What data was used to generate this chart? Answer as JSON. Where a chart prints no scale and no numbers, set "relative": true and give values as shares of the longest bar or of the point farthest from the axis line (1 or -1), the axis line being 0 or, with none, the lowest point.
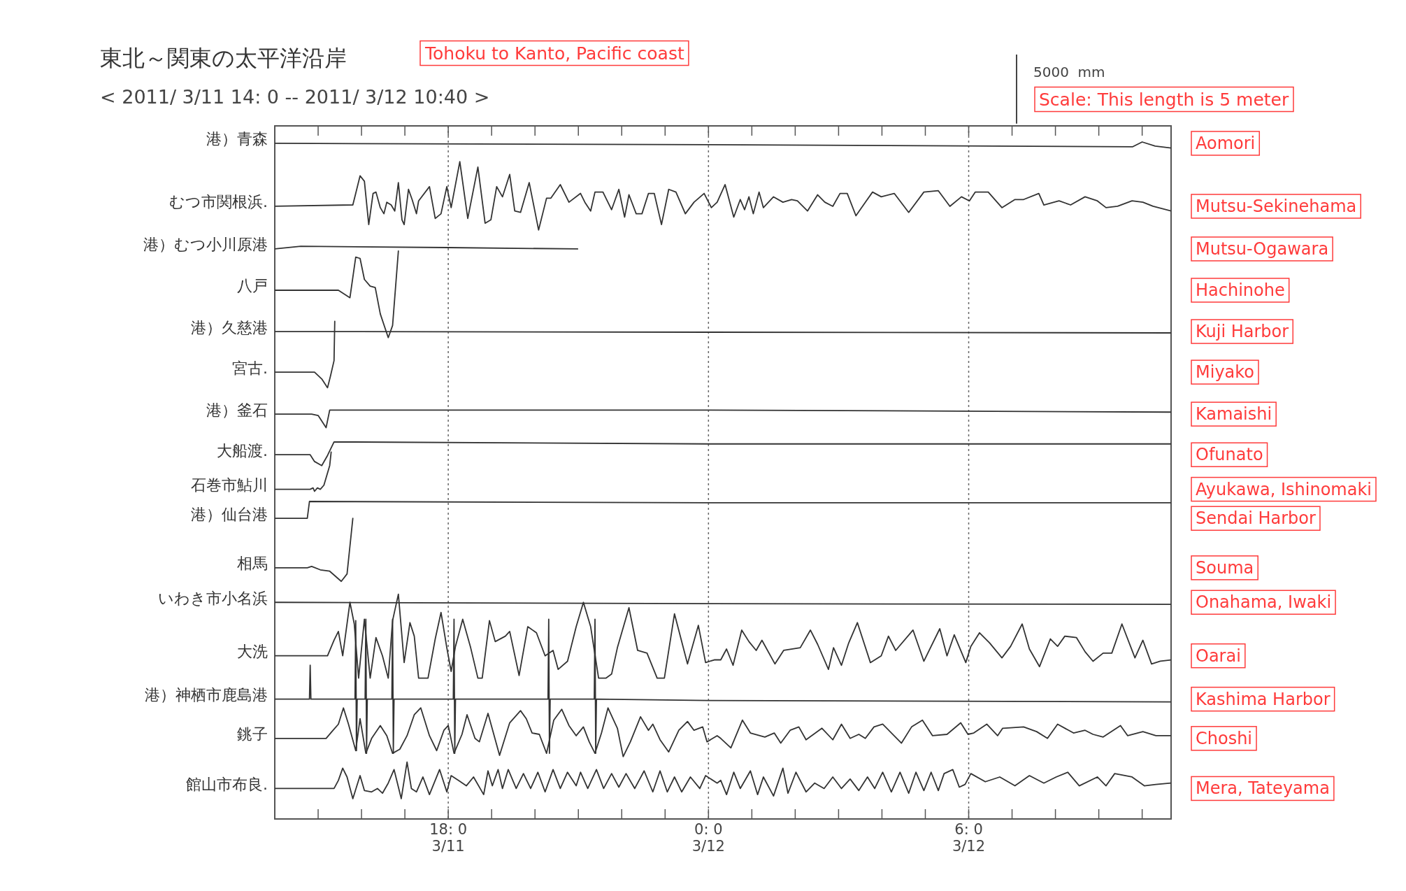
{
  "chart_data": {
    "type": "line",
    "title": "東北～関東の太平洋沿岸",
    "subtitle": "< 2011/ 3/11 14: 0 -- 2011/ 3/12 10:40 >",
    "relative": true,
    "tick_labels": "x",
    "xlim": [
      "2011-03-11T14:00",
      "2011-03-12T10:40"
    ],
    "xticks": [
      {
        "value": "2011-03-11T15:00",
        "label": null
      },
      {
        "value": "2011-03-11T16:00",
        "label": null
      },
      {
        "value": "2011-03-11T17:00",
        "label": null
      },
      {
        "value": "2011-03-11T18:00",
        "label": "18: 0\n3/11"
      },
      {
        "value": "2011-03-11T19:00",
        "label": null
      },
      {
        "value": "2011-03-11T20:00",
        "label": null
      },
      {
        "value": "2011-03-11T21:00",
        "label": null
      },
      {
        "value": "2011-03-11T22:00",
        "label": null
      },
      {
        "value": "2011-03-11T23:00",
        "label": null
      },
      {
        "value": "2011-03-12T00:00",
        "label": "0: 0\n3/12"
      },
      {
        "value": "2011-03-12T01:00",
        "label": null
      },
      {
        "value": "2011-03-12T02:00",
        "label": null
      },
      {
        "value": "2011-03-12T03:00",
        "label": null
      },
      {
        "value": "2011-03-12T04:00",
        "label": null
      },
      {
        "value": "2011-03-12T05:00",
        "label": null
      },
      {
        "value": "2011-03-12T06:00",
        "label": "6: 0\n3/12"
      },
      {
        "value": "2011-03-12T07:00",
        "label": null
      },
      {
        "value": "2011-03-12T08:00",
        "label": null
      },
      {
        "value": "2011-03-12T09:00",
        "label": null
      },
      {
        "value": "2011-03-12T10:00",
        "label": null
      }
    ],
    "ref_lines": [
      {
        "axis": "x",
        "value": "2011-03-11T18:00",
        "line_style": "dotted"
      },
      {
        "axis": "x",
        "value": "2011-03-12T00:00",
        "line_style": "dotted"
      },
      {
        "axis": "x",
        "value": "2011-03-12T06:00",
        "line_style": "dotted"
      }
    ],
    "annotations": [
      "Tohoku to Kanto, Pacific coast",
      "5000  mm",
      "Scale: This length is 5 meter",
      "Aomori",
      "Mutsu-Sekinehama",
      "Mutsu-Ogawara",
      "Hachinohe",
      "Kuji Harbor",
      "Miyako",
      "Kamaishi",
      "Ofunato",
      "Ayukawa, Ishinomaki",
      "Sendai Harbor",
      "Souma",
      "Onahama, Iwaki",
      "Oarai",
      "Kashima Harbor",
      "Choshi",
      "Mera, Tateyama"
    ],
    "series": [
      {
        "name": "港）青森",
        "color": "#333333",
        "x": [
          "2011-03-11T14:00",
          "2011-03-12T00:00",
          "2011-03-12T09:47",
          "2011-03-12T10:00",
          "2011-03-12T10:18",
          "2011-03-12T10:40"
        ],
        "values": [
          0.998,
          0.996,
          0.993,
          1,
          0.994,
          0.991
        ]
      },
      {
        "name": "むつ市関根浜.",
        "color": "#333333",
        "x": [
          "2011-03-11T14:00",
          "2011-03-11T15:48",
          "2011-03-11T15:52",
          "2011-03-11T15:58",
          "2011-03-11T16:04",
          "2011-03-11T16:10",
          "2011-03-11T16:16",
          "2011-03-11T16:20",
          "2011-03-11T16:26",
          "2011-03-11T16:31",
          "2011-03-11T16:35",
          "2011-03-11T16:41",
          "2011-03-11T16:46",
          "2011-03-11T16:51",
          "2011-03-11T16:56",
          "2011-03-11T16:59",
          "2011-03-11T17:05",
          "2011-03-11T17:10",
          "2011-03-11T17:16",
          "2011-03-11T17:19",
          "2011-03-11T17:34",
          "2011-03-11T17:42",
          "2011-03-11T17:50",
          "2011-03-11T17:58",
          "2011-03-11T18:04",
          "2011-03-11T18:16",
          "2011-03-11T18:27",
          "2011-03-11T18:41",
          "2011-03-11T18:51",
          "2011-03-11T18:59",
          "2011-03-11T19:07",
          "2011-03-11T19:15",
          "2011-03-11T19:25",
          "2011-03-11T19:32",
          "2011-03-11T19:40",
          "2011-03-11T19:52",
          "2011-03-11T20:05",
          "2011-03-11T20:16",
          "2011-03-11T20:22",
          "2011-03-11T20:35",
          "2011-03-11T20:47",
          "2011-03-11T21:03",
          "2011-03-11T21:09",
          "2011-03-11T21:17",
          "2011-03-11T21:23",
          "2011-03-11T21:34",
          "2011-03-11T21:46",
          "2011-03-11T21:56",
          "2011-03-11T22:04",
          "2011-03-11T22:10",
          "2011-03-11T22:20",
          "2011-03-11T22:28",
          "2011-03-11T22:37",
          "2011-03-11T22:45",
          "2011-03-11T22:55",
          "2011-03-11T23:05",
          "2011-03-11T23:15",
          "2011-03-11T23:28",
          "2011-03-11T23:40",
          "2011-03-11T23:54",
          "2011-03-12T00:04",
          "2011-03-12T00:12",
          "2011-03-12T00:23",
          "2011-03-12T00:35",
          "2011-03-12T00:44",
          "2011-03-12T00:50",
          "2011-03-12T00:56",
          "2011-03-12T01:02",
          "2011-03-12T01:10",
          "2011-03-12T01:16",
          "2011-03-12T01:30",
          "2011-03-12T01:43",
          "2011-03-12T01:55",
          "2011-03-12T02:03",
          "2011-03-12T02:17",
          "2011-03-12T02:31",
          "2011-03-12T02:41",
          "2011-03-12T02:52",
          "2011-03-12T03:02",
          "2011-03-12T03:12",
          "2011-03-12T03:24",
          "2011-03-12T03:37",
          "2011-03-12T03:47",
          "2011-03-12T03:59",
          "2011-03-12T04:17",
          "2011-03-12T04:37",
          "2011-03-12T04:58",
          "2011-03-12T05:18",
          "2011-03-12T05:34",
          "2011-03-12T05:50",
          "2011-03-12T06:01",
          "2011-03-12T06:09",
          "2011-03-12T06:27",
          "2011-03-12T06:46",
          "2011-03-12T07:04",
          "2011-03-12T07:16",
          "2011-03-12T07:37",
          "2011-03-12T07:44",
          "2011-03-12T08:05",
          "2011-03-12T08:21",
          "2011-03-12T08:41",
          "2011-03-12T08:58",
          "2011-03-12T09:10",
          "2011-03-12T09:26",
          "2011-03-12T09:46",
          "2011-03-12T10:01",
          "2011-03-12T10:15",
          "2011-03-12T10:40"
        ],
        "values": [
          0.905,
          0.907,
          0.924,
          0.95,
          0.942,
          0.878,
          0.924,
          0.926,
          0.903,
          0.894,
          0.911,
          0.907,
          0.898,
          0.94,
          0.885,
          0.878,
          0.93,
          0.915,
          0.894,
          0.913,
          0.934,
          0.887,
          0.894,
          0.934,
          0.903,
          0.971,
          0.887,
          0.963,
          0.88,
          0.885,
          0.934,
          0.919,
          0.952,
          0.898,
          0.896,
          0.94,
          0.87,
          0.917,
          0.917,
          0.937,
          0.911,
          0.924,
          0.911,
          0.898,
          0.926,
          0.926,
          0.9,
          0.93,
          0.889,
          0.922,
          0.894,
          0.894,
          0.924,
          0.924,
          0.878,
          0.93,
          0.926,
          0.894,
          0.911,
          0.924,
          0.903,
          0.911,
          0.937,
          0.889,
          0.915,
          0.9,
          0.919,
          0.894,
          0.926,
          0.903,
          0.919,
          0.911,
          0.915,
          0.913,
          0.898,
          0.922,
          0.911,
          0.905,
          0.924,
          0.924,
          0.891,
          0.911,
          0.926,
          0.919,
          0.924,
          0.896,
          0.926,
          0.928,
          0.905,
          0.919,
          0.913,
          0.926,
          0.926,
          0.903,
          0.915,
          0.915,
          0.924,
          0.907,
          0.913,
          0.907,
          0.919,
          0.913,
          0.903,
          0.905,
          0.913,
          0.911,
          0.905,
          0.898
        ]
      },
      {
        "name": "港）むつ小川原港",
        "color": "#333333",
        "x": [
          "2011-03-11T14:00",
          "2011-03-11T14:36",
          "2011-03-11T18:00",
          "2011-03-11T20:59"
        ],
        "values": [
          0.842,
          0.846,
          0.844,
          0.842
        ]
      },
      {
        "name": "八戸",
        "color": "#333333",
        "x": [
          "2011-03-11T14:00",
          "2011-03-11T15:28",
          "2011-03-11T15:44",
          "2011-03-11T15:52",
          "2011-03-11T15:58",
          "2011-03-11T16:04",
          "2011-03-11T16:12",
          "2011-03-11T16:19",
          "2011-03-11T16:26",
          "2011-03-11T16:37",
          "2011-03-11T16:43",
          "2011-03-11T16:51"
        ],
        "values": [
          0.781,
          0.781,
          0.77,
          0.83,
          0.828,
          0.797,
          0.787,
          0.785,
          0.746,
          0.711,
          0.729,
          0.839
        ]
      },
      {
        "name": "港）久慈港",
        "color": "#333333",
        "x": [
          "2011-03-11T14:00",
          "2011-03-11T15:18",
          "2011-03-12T00:00",
          "2011-03-12T10:40"
        ],
        "values": [
          0.72,
          0.72,
          0.719,
          0.718
        ]
      },
      {
        "name": "宮古.",
        "color": "#333333",
        "x": [
          "2011-03-11T14:00",
          "2011-03-11T14:55",
          "2011-03-11T15:05",
          "2011-03-11T15:13",
          "2011-03-11T15:17",
          "2011-03-11T15:22",
          "2011-03-11T15:23"
        ],
        "values": [
          0.66,
          0.66,
          0.65,
          0.637,
          0.654,
          0.677,
          0.735
        ]
      },
      {
        "name": "港）釜石",
        "color": "#333333",
        "x": [
          "2011-03-11T14:00",
          "2011-03-11T14:51",
          "2011-03-11T15:00",
          "2011-03-11T15:11",
          "2011-03-11T15:16",
          "2011-03-12T00:00",
          "2011-03-12T10:40"
        ],
        "values": [
          0.598,
          0.598,
          0.596,
          0.578,
          0.604,
          0.604,
          0.601
        ]
      },
      {
        "name": "大船渡.",
        "color": "#333333",
        "x": [
          "2011-03-11T14:00",
          "2011-03-11T14:49",
          "2011-03-11T14:55",
          "2011-03-11T15:05",
          "2011-03-11T15:13",
          "2011-03-11T15:22",
          "2011-03-12T00:00",
          "2011-03-12T10:40"
        ],
        "values": [
          0.538,
          0.538,
          0.528,
          0.522,
          0.537,
          0.557,
          0.554,
          0.554
        ]
      },
      {
        "name": "石巻市鮎川",
        "color": "#333333",
        "x": [
          "2011-03-11T14:00",
          "2011-03-11T14:49",
          "2011-03-11T14:53",
          "2011-03-11T14:55",
          "2011-03-11T14:59",
          "2011-03-11T15:03",
          "2011-03-11T15:08",
          "2011-03-11T15:16",
          "2011-03-11T15:18"
        ],
        "values": [
          0.487,
          0.487,
          0.489,
          0.484,
          0.489,
          0.487,
          0.493,
          0.522,
          0.542
        ]
      },
      {
        "name": "港）仙台港",
        "color": "#333333",
        "x": [
          "2011-03-11T14:00",
          "2011-03-11T14:45",
          "2011-03-11T14:48",
          "2011-03-12T00:00",
          "2011-03-12T10:40"
        ],
        "values": [
          0.444,
          0.444,
          0.469,
          0.467,
          0.467
        ]
      },
      {
        "name": "相馬",
        "color": "#333333",
        "x": [
          "2011-03-11T14:00",
          "2011-03-11T14:45",
          "2011-03-11T14:51",
          "2011-03-11T15:03",
          "2011-03-11T15:16",
          "2011-03-11T15:32",
          "2011-03-11T15:40",
          "2011-03-11T15:48"
        ],
        "values": [
          0.371,
          0.371,
          0.373,
          0.368,
          0.366,
          0.351,
          0.362,
          0.444
        ]
      },
      {
        "name": "いわき市小名浜",
        "color": "#333333",
        "x": [
          "2011-03-11T14:00",
          "2011-03-12T00:00",
          "2011-03-12T10:40"
        ],
        "values": [
          0.32,
          0.318,
          0.317
        ]
      },
      {
        "name": "大洗",
        "color": "#333333",
        "x": [
          "2011-03-11T14:00",
          "2011-03-11T15:13",
          "2011-03-11T15:22",
          "2011-03-11T15:28",
          "2011-03-11T15:34",
          "2011-03-11T15:44",
          "2011-03-11T15:50",
          "2011-03-11T15:56",
          "2011-03-11T16:04",
          "2011-03-11T16:12",
          "2011-03-11T16:20",
          "2011-03-11T16:29",
          "2011-03-11T16:37",
          "2011-03-11T16:43",
          "2011-03-11T16:51",
          "2011-03-11T16:59",
          "2011-03-11T17:07",
          "2011-03-11T17:13",
          "2011-03-11T17:19",
          "2011-03-11T17:32",
          "2011-03-11T17:42",
          "2011-03-11T17:50",
          "2011-03-11T17:58",
          "2011-03-11T18:04",
          "2011-03-11T18:10",
          "2011-03-11T18:20",
          "2011-03-11T18:31",
          "2011-03-11T18:41",
          "2011-03-11T18:47",
          "2011-03-11T18:57",
          "2011-03-11T19:05",
          "2011-03-11T19:19",
          "2011-03-11T19:25",
          "2011-03-11T19:38",
          "2011-03-11T19:50",
          "2011-03-11T20:02",
          "2011-03-11T20:14",
          "2011-03-11T20:25",
          "2011-03-11T20:32",
          "2011-03-11T20:45",
          "2011-03-11T20:57",
          "2011-03-11T21:07",
          "2011-03-11T21:17",
          "2011-03-11T21:28",
          "2011-03-11T21:38",
          "2011-03-11T21:46",
          "2011-03-11T21:54",
          "2011-03-11T22:10",
          "2011-03-11T22:22",
          "2011-03-11T22:35",
          "2011-03-11T22:49",
          "2011-03-11T22:59",
          "2011-03-11T23:13",
          "2011-03-11T23:31",
          "2011-03-11T23:46",
          "2011-03-11T23:56",
          "2011-03-12T00:08",
          "2011-03-12T00:17",
          "2011-03-12T00:25",
          "2011-03-12T00:34",
          "2011-03-12T00:46",
          "2011-03-12T00:56",
          "2011-03-12T01:06",
          "2011-03-12T01:14",
          "2011-03-12T01:32",
          "2011-03-12T01:44",
          "2011-03-12T02:07",
          "2011-03-12T02:21",
          "2011-03-12T02:31",
          "2011-03-12T02:46",
          "2011-03-12T02:53",
          "2011-03-12T03:04",
          "2011-03-12T03:14",
          "2011-03-12T03:26",
          "2011-03-12T03:44",
          "2011-03-12T03:59",
          "2011-03-12T04:09",
          "2011-03-12T04:19",
          "2011-03-12T04:43",
          "2011-03-12T04:58",
          "2011-03-12T05:20",
          "2011-03-12T05:30",
          "2011-03-12T05:40",
          "2011-03-12T05:56",
          "2011-03-12T06:03",
          "2011-03-12T06:15",
          "2011-03-12T06:29",
          "2011-03-12T06:46",
          "2011-03-12T06:58",
          "2011-03-12T07:14",
          "2011-03-12T07:24",
          "2011-03-12T07:38",
          "2011-03-12T07:53",
          "2011-03-12T08:03",
          "2011-03-12T08:13",
          "2011-03-12T08:29",
          "2011-03-12T08:41",
          "2011-03-12T08:52",
          "2011-03-12T09:06",
          "2011-03-12T09:18",
          "2011-03-12T09:32",
          "2011-03-12T09:50",
          "2011-03-12T10:01",
          "2011-03-12T10:13",
          "2011-03-12T10:25",
          "2011-03-12T10:40"
        ],
        "values": [
          0.241,
          0.241,
          0.264,
          0.277,
          0.241,
          0.32,
          0.288,
          0.208,
          0.295,
          0.208,
          0.268,
          0.241,
          0.208,
          0.293,
          0.332,
          0.231,
          0.29,
          0.27,
          0.208,
          0.208,
          0.266,
          0.305,
          0.253,
          0.218,
          0.255,
          0.295,
          0.253,
          0.208,
          0.208,
          0.293,
          0.262,
          0.27,
          0.277,
          0.212,
          0.284,
          0.275,
          0.241,
          0.249,
          0.221,
          0.233,
          0.284,
          0.32,
          0.284,
          0.208,
          0.208,
          0.214,
          0.253,
          0.312,
          0.249,
          0.245,
          0.208,
          0.208,
          0.303,
          0.229,
          0.286,
          0.231,
          0.235,
          0.235,
          0.251,
          0.227,
          0.279,
          0.262,
          0.249,
          0.264,
          0.229,
          0.249,
          0.253,
          0.279,
          0.258,
          0.221,
          0.253,
          0.227,
          0.26,
          0.29,
          0.231,
          0.241,
          0.27,
          0.249,
          0.279,
          0.233,
          0.281,
          0.241,
          0.272,
          0.231,
          0.255,
          0.275,
          0.26,
          0.238,
          0.255,
          0.288,
          0.251,
          0.225,
          0.266,
          0.255,
          0.27,
          0.268,
          0.247,
          0.233,
          0.245,
          0.245,
          0.288,
          0.238,
          0.264,
          0.229,
          0.233,
          0.235
        ]
      },
      {
        "name": "港）神栖市鹿島港",
        "color": "#333333",
        "x": [
          "2011-03-11T14:00",
          "2011-03-11T14:48",
          "2011-03-11T14:49",
          "2011-03-11T14:50",
          "2011-03-11T15:51",
          "2011-03-11T15:52",
          "2011-03-11T15:53",
          "2011-03-11T15:54",
          "2011-03-11T16:05",
          "2011-03-11T16:06",
          "2011-03-11T16:07",
          "2011-03-11T16:08",
          "2011-03-11T16:42",
          "2011-03-11T16:43",
          "2011-03-11T16:44",
          "2011-03-11T16:45",
          "2011-03-11T18:07",
          "2011-03-11T18:08",
          "2011-03-11T18:09",
          "2011-03-11T18:10",
          "2011-03-11T20:18",
          "2011-03-11T20:19",
          "2011-03-11T20:20",
          "2011-03-11T20:21",
          "2011-03-11T21:22",
          "2011-03-11T21:23",
          "2011-03-11T21:24",
          "2011-03-11T21:25",
          "2011-03-12T00:00",
          "2011-03-12T10:40"
        ],
        "values": [
          0.177,
          0.177,
          0.227,
          0.177,
          0.177,
          0.293,
          0.101,
          0.177,
          0.177,
          0.295,
          0.097,
          0.177,
          0.177,
          0.295,
          0.097,
          0.177,
          0.177,
          0.295,
          0.097,
          0.177,
          0.177,
          0.295,
          0.097,
          0.177,
          0.177,
          0.295,
          0.097,
          0.177,
          0.175,
          0.173
        ]
      },
      {
        "name": "銚子",
        "color": "#333333",
        "x": [
          "2011-03-11T14:00",
          "2011-03-11T15:11",
          "2011-03-11T15:19",
          "2011-03-11T15:28",
          "2011-03-11T15:35",
          "2011-03-11T15:42",
          "2011-03-11T15:52",
          "2011-03-11T15:58",
          "2011-03-11T16:06",
          "2011-03-11T16:14",
          "2011-03-11T16:26",
          "2011-03-11T16:35",
          "2011-03-11T16:43",
          "2011-03-11T16:53",
          "2011-03-11T17:03",
          "2011-03-11T17:13",
          "2011-03-11T17:22",
          "2011-03-11T17:34",
          "2011-03-11T17:44",
          "2011-03-11T17:54",
          "2011-03-11T18:00",
          "2011-03-11T18:08",
          "2011-03-11T18:19",
          "2011-03-11T18:26",
          "2011-03-11T18:37",
          "2011-03-11T18:43",
          "2011-03-11T18:55",
          "2011-03-11T19:11",
          "2011-03-11T19:25",
          "2011-03-11T19:40",
          "2011-03-11T19:48",
          "2011-03-11T19:56",
          "2011-03-11T20:06",
          "2011-03-11T20:16",
          "2011-03-11T20:26",
          "2011-03-11T20:37",
          "2011-03-11T20:47",
          "2011-03-11T20:57",
          "2011-03-11T21:07",
          "2011-03-11T21:15",
          "2011-03-11T21:23",
          "2011-03-11T21:32",
          "2011-03-11T21:41",
          "2011-03-11T21:54",
          "2011-03-11T22:02",
          "2011-03-11T22:12",
          "2011-03-11T22:26",
          "2011-03-11T22:37",
          "2011-03-11T22:43",
          "2011-03-11T22:53",
          "2011-03-11T23:05",
          "2011-03-11T23:19",
          "2011-03-11T23:31",
          "2011-03-11T23:40",
          "2011-03-11T23:52",
          "2011-03-11T23:58",
          "2011-03-12T00:12",
          "2011-03-12T00:17",
          "2011-03-12T00:31",
          "2011-03-12T00:47",
          "2011-03-12T00:58",
          "2011-03-12T01:18",
          "2011-03-12T01:31",
          "2011-03-12T01:40",
          "2011-03-12T01:53",
          "2011-03-12T02:05",
          "2011-03-12T02:15",
          "2011-03-12T02:37",
          "2011-03-12T02:52",
          "2011-03-12T03:04",
          "2011-03-12T03:16",
          "2011-03-12T03:28",
          "2011-03-12T03:37",
          "2011-03-12T03:49",
          "2011-03-12T04:01",
          "2011-03-12T04:27",
          "2011-03-12T04:41",
          "2011-03-12T04:56",
          "2011-03-12T05:10",
          "2011-03-12T05:30",
          "2011-03-12T05:49",
          "2011-03-12T05:59",
          "2011-03-12T06:07",
          "2011-03-12T06:25",
          "2011-03-12T06:40",
          "2011-03-12T06:47",
          "2011-03-12T07:16",
          "2011-03-12T07:34",
          "2011-03-12T07:49",
          "2011-03-12T08:03",
          "2011-03-12T08:25",
          "2011-03-12T08:41",
          "2011-03-12T08:52",
          "2011-03-12T09:06",
          "2011-03-12T09:30",
          "2011-03-12T09:40",
          "2011-03-12T10:01",
          "2011-03-12T10:19",
          "2011-03-12T10:40"
        ],
        "values": [
          0.119,
          0.119,
          0.129,
          0.14,
          0.164,
          0.14,
          0.101,
          0.148,
          0.097,
          0.119,
          0.138,
          0.123,
          0.097,
          0.103,
          0.123,
          0.154,
          0.164,
          0.123,
          0.101,
          0.131,
          0.138,
          0.097,
          0.125,
          0.154,
          0.119,
          0.114,
          0.156,
          0.094,
          0.142,
          0.16,
          0.148,
          0.127,
          0.125,
          0.097,
          0.146,
          0.162,
          0.138,
          0.123,
          0.136,
          0.114,
          0.097,
          0.127,
          0.164,
          0.134,
          0.092,
          0.114,
          0.151,
          0.131,
          0.14,
          0.117,
          0.099,
          0.131,
          0.144,
          0.131,
          0.136,
          0.114,
          0.123,
          0.119,
          0.105,
          0.146,
          0.127,
          0.121,
          0.127,
          0.112,
          0.131,
          0.136,
          0.117,
          0.134,
          0.117,
          0.14,
          0.119,
          0.125,
          0.119,
          0.136,
          0.14,
          0.112,
          0.136,
          0.146,
          0.123,
          0.125,
          0.142,
          0.125,
          0.127,
          0.14,
          0.123,
          0.134,
          0.136,
          0.129,
          0.119,
          0.14,
          0.127,
          0.131,
          0.125,
          0.121,
          0.138,
          0.123,
          0.129,
          0.123,
          0.123
        ]
      },
      {
        "name": "館山市布良.",
        "color": "#333333",
        "x": [
          "2011-03-11T14:00",
          "2011-03-11T15:22",
          "2011-03-11T15:28",
          "2011-03-11T15:34",
          "2011-03-11T15:40",
          "2011-03-11T15:48",
          "2011-03-11T15:58",
          "2011-03-11T16:04",
          "2011-03-11T16:14",
          "2011-03-11T16:22",
          "2011-03-11T16:29",
          "2011-03-11T16:37",
          "2011-03-11T16:45",
          "2011-03-11T16:55",
          "2011-03-11T17:03",
          "2011-03-11T17:09",
          "2011-03-11T17:16",
          "2011-03-11T17:25",
          "2011-03-11T17:34",
          "2011-03-11T17:48",
          "2011-03-11T17:58",
          "2011-03-11T18:04",
          "2011-03-11T18:14",
          "2011-03-11T18:25",
          "2011-03-11T18:35",
          "2011-03-11T18:49",
          "2011-03-11T18:55",
          "2011-03-11T19:01",
          "2011-03-11T19:09",
          "2011-03-11T19:15",
          "2011-03-11T19:23",
          "2011-03-11T19:34",
          "2011-03-11T19:44",
          "2011-03-11T19:54",
          "2011-03-11T20:04",
          "2011-03-11T20:14",
          "2011-03-11T20:25",
          "2011-03-11T20:35",
          "2011-03-11T20:45",
          "2011-03-11T20:57",
          "2011-03-11T21:03",
          "2011-03-11T21:13",
          "2011-03-11T21:25",
          "2011-03-11T21:35",
          "2011-03-11T21:46",
          "2011-03-11T21:56",
          "2011-03-11T22:06",
          "2011-03-11T22:18",
          "2011-03-11T22:31",
          "2011-03-11T22:43",
          "2011-03-11T22:53",
          "2011-03-11T23:03",
          "2011-03-11T23:13",
          "2011-03-11T23:23",
          "2011-03-11T23:35",
          "2011-03-11T23:48",
          "2011-03-11T23:56",
          "2011-03-12T00:12",
          "2011-03-12T00:17",
          "2011-03-12T00:25",
          "2011-03-12T00:35",
          "2011-03-12T00:44",
          "2011-03-12T00:58",
          "2011-03-12T01:08",
          "2011-03-12T01:16",
          "2011-03-12T01:30",
          "2011-03-12T01:43",
          "2011-03-12T01:50",
          "2011-03-12T02:01",
          "2011-03-12T02:15",
          "2011-03-12T02:27",
          "2011-03-12T02:40",
          "2011-03-12T02:52",
          "2011-03-12T03:04",
          "2011-03-12T03:16",
          "2011-03-12T03:28",
          "2011-03-12T03:40",
          "2011-03-12T03:50",
          "2011-03-12T04:01",
          "2011-03-12T04:13",
          "2011-03-12T04:25",
          "2011-03-12T04:37",
          "2011-03-12T04:47",
          "2011-03-12T04:58",
          "2011-03-12T05:08",
          "2011-03-12T05:18",
          "2011-03-12T05:26",
          "2011-03-12T05:38",
          "2011-03-12T05:47",
          "2011-03-12T05:55",
          "2011-03-12T06:03",
          "2011-03-12T06:23",
          "2011-03-12T06:43",
          "2011-03-12T07:04",
          "2011-03-12T07:24",
          "2011-03-12T07:44",
          "2011-03-12T08:01",
          "2011-03-12T08:17",
          "2011-03-12T08:33",
          "2011-03-12T08:58",
          "2011-03-12T09:10",
          "2011-03-12T09:22",
          "2011-03-12T09:46",
          "2011-03-12T10:03",
          "2011-03-12T10:19",
          "2011-03-12T10:40"
        ],
        "values": [
          0.045,
          0.045,
          0.057,
          0.075,
          0.062,
          0.03,
          0.064,
          0.042,
          0.04,
          0.045,
          0.038,
          0.053,
          0.073,
          0.03,
          0.084,
          0.045,
          0.04,
          0.062,
          0.036,
          0.073,
          0.04,
          0.064,
          0.057,
          0.049,
          0.062,
          0.036,
          0.071,
          0.049,
          0.073,
          0.045,
          0.073,
          0.045,
          0.067,
          0.045,
          0.069,
          0.04,
          0.073,
          0.045,
          0.069,
          0.049,
          0.069,
          0.045,
          0.073,
          0.045,
          0.067,
          0.047,
          0.067,
          0.045,
          0.071,
          0.04,
          0.071,
          0.04,
          0.062,
          0.04,
          0.062,
          0.045,
          0.064,
          0.053,
          0.057,
          0.036,
          0.069,
          0.045,
          0.071,
          0.036,
          0.062,
          0.034,
          0.075,
          0.038,
          0.069,
          0.04,
          0.053,
          0.045,
          0.062,
          0.045,
          0.059,
          0.042,
          0.062,
          0.045,
          0.069,
          0.04,
          0.069,
          0.038,
          0.069,
          0.042,
          0.069,
          0.042,
          0.067,
          0.073,
          0.047,
          0.051,
          0.067,
          0.055,
          0.062,
          0.049,
          0.064,
          0.053,
          0.062,
          0.069,
          0.049,
          0.062,
          0.049,
          0.067,
          0.062,
          0.049,
          0.051,
          0.053
        ]
      }
    ]
  }
}
